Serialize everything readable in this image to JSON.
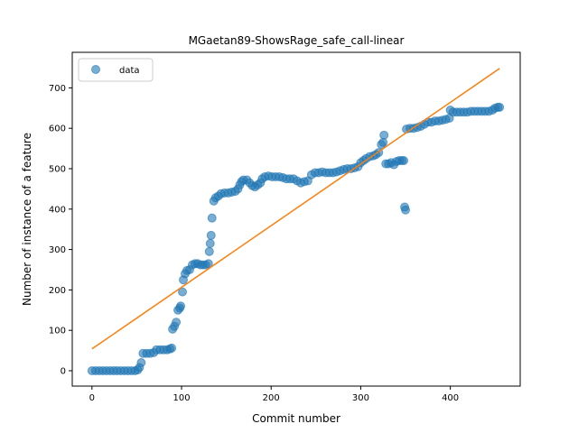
{
  "chart_data": {
    "type": "scatter",
    "title": "MGaetan89-ShowsRage_safe_call-linear",
    "xlabel": "Commit number",
    "ylabel": "Number of instance of a feature",
    "xlim": [
      -22,
      478
    ],
    "ylim": [
      -38,
      788
    ],
    "xticks": [
      0,
      100,
      200,
      300,
      400
    ],
    "yticks": [
      0,
      100,
      200,
      300,
      400,
      500,
      600,
      700
    ],
    "legend": {
      "position": "top-left",
      "entries": [
        "data"
      ]
    },
    "grid": false,
    "series": [
      {
        "name": "data",
        "kind": "scatter",
        "color": "#1f77b4",
        "alpha": 0.6,
        "points": [
          [
            0,
            0
          ],
          [
            4,
            0
          ],
          [
            8,
            0
          ],
          [
            12,
            0
          ],
          [
            16,
            0
          ],
          [
            20,
            0
          ],
          [
            24,
            0
          ],
          [
            28,
            0
          ],
          [
            32,
            0
          ],
          [
            36,
            0
          ],
          [
            40,
            0
          ],
          [
            44,
            0
          ],
          [
            48,
            0
          ],
          [
            51,
            2
          ],
          [
            53,
            8
          ],
          [
            55,
            20
          ],
          [
            57,
            43
          ],
          [
            61,
            43
          ],
          [
            65,
            43
          ],
          [
            69,
            45
          ],
          [
            72,
            52
          ],
          [
            76,
            52
          ],
          [
            80,
            52
          ],
          [
            84,
            52
          ],
          [
            87,
            54
          ],
          [
            89,
            56
          ],
          [
            90,
            103
          ],
          [
            92,
            110
          ],
          [
            94,
            120
          ],
          [
            96,
            150
          ],
          [
            98,
            155
          ],
          [
            99,
            160
          ],
          [
            101,
            195
          ],
          [
            102,
            225
          ],
          [
            104,
            240
          ],
          [
            106,
            248
          ],
          [
            109,
            250
          ],
          [
            112,
            262
          ],
          [
            115,
            265
          ],
          [
            118,
            265
          ],
          [
            121,
            262
          ],
          [
            124,
            262
          ],
          [
            127,
            262
          ],
          [
            130,
            265
          ],
          [
            131,
            295
          ],
          [
            132,
            315
          ],
          [
            133,
            335
          ],
          [
            134,
            378
          ],
          [
            136,
            420
          ],
          [
            138,
            428
          ],
          [
            141,
            432
          ],
          [
            144,
            438
          ],
          [
            148,
            440
          ],
          [
            152,
            440
          ],
          [
            156,
            442
          ],
          [
            160,
            444
          ],
          [
            163,
            450
          ],
          [
            165,
            460
          ],
          [
            167,
            468
          ],
          [
            169,
            472
          ],
          [
            173,
            472
          ],
          [
            176,
            465
          ],
          [
            179,
            458
          ],
          [
            182,
            455
          ],
          [
            185,
            460
          ],
          [
            188,
            465
          ],
          [
            190,
            475
          ],
          [
            193,
            480
          ],
          [
            197,
            482
          ],
          [
            201,
            480
          ],
          [
            205,
            480
          ],
          [
            209,
            480
          ],
          [
            213,
            478
          ],
          [
            217,
            475
          ],
          [
            221,
            475
          ],
          [
            225,
            475
          ],
          [
            229,
            470
          ],
          [
            233,
            465
          ],
          [
            237,
            468
          ],
          [
            241,
            470
          ],
          [
            245,
            485
          ],
          [
            249,
            490
          ],
          [
            253,
            490
          ],
          [
            257,
            492
          ],
          [
            261,
            490
          ],
          [
            265,
            490
          ],
          [
            269,
            490
          ],
          [
            273,
            492
          ],
          [
            277,
            495
          ],
          [
            281,
            498
          ],
          [
            285,
            500
          ],
          [
            289,
            500
          ],
          [
            293,
            502
          ],
          [
            297,
            505
          ],
          [
            300,
            515
          ],
          [
            303,
            520
          ],
          [
            306,
            525
          ],
          [
            310,
            530
          ],
          [
            314,
            532
          ],
          [
            317,
            535
          ],
          [
            320,
            540
          ],
          [
            323,
            560
          ],
          [
            325,
            565
          ],
          [
            326,
            583
          ],
          [
            328,
            512
          ],
          [
            331,
            512
          ],
          [
            334,
            515
          ],
          [
            337,
            510
          ],
          [
            340,
            518
          ],
          [
            343,
            520
          ],
          [
            346,
            520
          ],
          [
            348,
            520
          ],
          [
            349,
            405
          ],
          [
            350,
            398
          ],
          [
            351,
            598
          ],
          [
            355,
            600
          ],
          [
            359,
            600
          ],
          [
            363,
            602
          ],
          [
            367,
            605
          ],
          [
            371,
            610
          ],
          [
            375,
            615
          ],
          [
            379,
            615
          ],
          [
            383,
            618
          ],
          [
            387,
            618
          ],
          [
            391,
            620
          ],
          [
            395,
            622
          ],
          [
            399,
            625
          ],
          [
            400,
            645
          ],
          [
            403,
            640
          ],
          [
            407,
            640
          ],
          [
            411,
            640
          ],
          [
            415,
            640
          ],
          [
            419,
            640
          ],
          [
            423,
            642
          ],
          [
            427,
            642
          ],
          [
            431,
            642
          ],
          [
            435,
            642
          ],
          [
            439,
            642
          ],
          [
            443,
            642
          ],
          [
            447,
            645
          ],
          [
            450,
            650
          ],
          [
            453,
            652
          ],
          [
            455,
            652
          ]
        ]
      },
      {
        "name": "",
        "kind": "line",
        "color": "#ff7f0e",
        "points": [
          [
            0,
            54
          ],
          [
            455,
            748
          ]
        ]
      }
    ]
  }
}
